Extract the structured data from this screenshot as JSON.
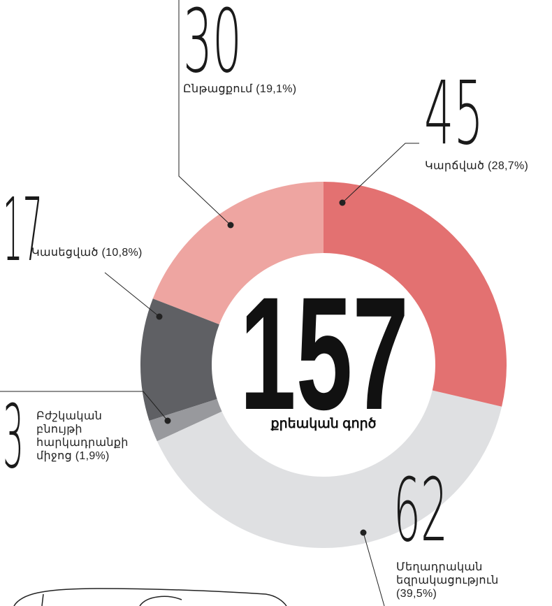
{
  "chart_data": {
    "type": "donut",
    "total": 157,
    "total_label": "քրեական գործ",
    "categories": [
      "Կարճված (28,7%)",
      "Մեղադրական եզրակացություն (39,5%)",
      "Բժշկական բնույթի հարկադրանքի միջոց (1,9%)",
      "Կասեցված (10,8%)",
      "Ընթացքում (19,1%)"
    ],
    "values": [
      45,
      62,
      3,
      17,
      30
    ],
    "colors": [
      "#e37171",
      "#dfe0e2",
      "#98999d",
      "#5f6064",
      "#eea5a1"
    ]
  }
}
